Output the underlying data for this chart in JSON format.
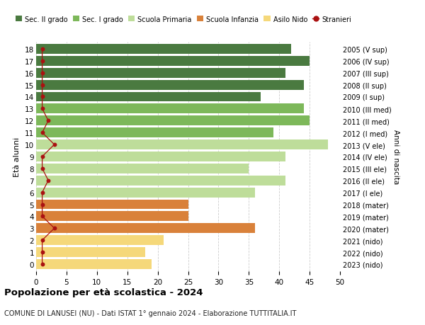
{
  "ages": [
    18,
    17,
    16,
    15,
    14,
    13,
    12,
    11,
    10,
    9,
    8,
    7,
    6,
    5,
    4,
    3,
    2,
    1,
    0
  ],
  "right_labels": [
    "2005 (V sup)",
    "2006 (IV sup)",
    "2007 (III sup)",
    "2008 (II sup)",
    "2009 (I sup)",
    "2010 (III med)",
    "2011 (II med)",
    "2012 (I med)",
    "2013 (V ele)",
    "2014 (IV ele)",
    "2015 (III ele)",
    "2016 (II ele)",
    "2017 (I ele)",
    "2018 (mater)",
    "2019 (mater)",
    "2020 (mater)",
    "2021 (nido)",
    "2022 (nido)",
    "2023 (nido)"
  ],
  "bar_values": [
    42,
    45,
    41,
    44,
    37,
    44,
    45,
    39,
    48,
    41,
    35,
    41,
    36,
    25,
    25,
    36,
    21,
    18,
    19
  ],
  "bar_colors": [
    "#4a7a40",
    "#4a7a40",
    "#4a7a40",
    "#4a7a40",
    "#4a7a40",
    "#7db85a",
    "#7db85a",
    "#7db85a",
    "#bedd9a",
    "#bedd9a",
    "#bedd9a",
    "#bedd9a",
    "#bedd9a",
    "#d9813a",
    "#d9813a",
    "#d9813a",
    "#f5d87a",
    "#f5d87a",
    "#f5d87a"
  ],
  "stranieri_values": [
    1,
    1,
    1,
    1,
    1,
    1,
    2,
    1,
    3,
    1,
    1,
    2,
    1,
    1,
    1,
    3,
    1,
    1,
    1
  ],
  "stranieri_color": "#aa1111",
  "legend_labels": [
    "Sec. II grado",
    "Sec. I grado",
    "Scuola Primaria",
    "Scuola Infanzia",
    "Asilo Nido",
    "Stranieri"
  ],
  "legend_colors": [
    "#4a7a40",
    "#7db85a",
    "#bedd9a",
    "#d9813a",
    "#f5d87a",
    "#aa1111"
  ],
  "title": "Popolazione per età scolastica - 2024",
  "subtitle": "COMUNE DI LANUSEI (NU) - Dati ISTAT 1° gennaio 2024 - Elaborazione TUTTITALIA.IT",
  "ylabel": "Età alunni",
  "right_ylabel": "Anni di nascita",
  "xlim": [
    0,
    50
  ],
  "xticks": [
    0,
    5,
    10,
    15,
    20,
    25,
    30,
    35,
    40,
    45,
    50
  ],
  "background_color": "#ffffff",
  "grid_color": "#cccccc"
}
